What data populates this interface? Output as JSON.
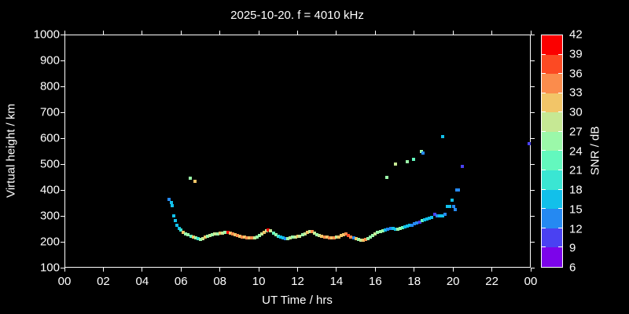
{
  "figure": {
    "background": "#000000",
    "text_color": "#ffffff"
  },
  "chart_data": {
    "type": "scatter",
    "title": "2025-10-20. f = 4010 kHz",
    "xlabel": "UT Time / hrs",
    "ylabel": "Virtual height / km",
    "colorbar_label": "SNR / dB",
    "xlim": [
      0,
      24
    ],
    "ylim": [
      100,
      1000
    ],
    "grid": false,
    "legend": "colorbar-right",
    "x_ticks": [
      0,
      2,
      4,
      6,
      8,
      10,
      12,
      14,
      16,
      18,
      20,
      22,
      24
    ],
    "x_tick_labels": [
      "00",
      "02",
      "04",
      "06",
      "08",
      "10",
      "12",
      "14",
      "16",
      "18",
      "20",
      "22",
      "00"
    ],
    "y_ticks": [
      100,
      200,
      300,
      400,
      500,
      600,
      700,
      800,
      900,
      1000
    ],
    "colorbar": {
      "min": 6,
      "max": 42,
      "step": 3,
      "tick_labels": [
        42,
        39,
        36,
        33,
        30,
        27,
        24,
        21,
        18,
        15,
        12,
        9,
        6
      ],
      "colors_low_to_high": [
        "#7c04ea",
        "#4a41f2",
        "#2589f2",
        "#12c0ea",
        "#3ae6d3",
        "#63f8be",
        "#9bf8a9",
        "#c6e894",
        "#f2c568",
        "#fb8c4c",
        "#fc4a23",
        "#fb0000"
      ]
    },
    "points_hour_km_snr": [
      [
        5.4,
        365,
        13
      ],
      [
        5.5,
        352,
        16
      ],
      [
        5.55,
        340,
        16
      ],
      [
        5.62,
        301,
        16
      ],
      [
        5.7,
        282,
        16
      ],
      [
        5.78,
        263,
        16
      ],
      [
        5.9,
        252,
        16
      ],
      [
        6.0,
        245,
        19
      ],
      [
        6.1,
        237,
        31
      ],
      [
        6.22,
        231,
        25
      ],
      [
        6.35,
        226,
        25
      ],
      [
        6.5,
        222,
        22
      ],
      [
        6.62,
        218,
        31
      ],
      [
        6.75,
        214,
        25
      ],
      [
        6.88,
        211,
        19
      ],
      [
        7.0,
        209,
        25
      ],
      [
        7.12,
        212,
        28
      ],
      [
        7.25,
        217,
        31
      ],
      [
        7.38,
        221,
        25
      ],
      [
        7.5,
        224,
        28
      ],
      [
        7.62,
        227,
        25
      ],
      [
        7.75,
        229,
        28
      ],
      [
        7.88,
        231,
        25
      ],
      [
        8.0,
        232,
        31
      ],
      [
        8.12,
        234,
        28
      ],
      [
        8.25,
        235,
        25
      ],
      [
        8.4,
        236,
        40
      ],
      [
        8.52,
        234,
        31
      ],
      [
        8.65,
        231,
        34
      ],
      [
        8.78,
        228,
        31
      ],
      [
        8.9,
        224,
        34
      ],
      [
        9.02,
        221,
        31
      ],
      [
        9.15,
        219,
        34
      ],
      [
        9.28,
        217,
        31
      ],
      [
        9.4,
        216,
        34
      ],
      [
        9.52,
        215,
        31
      ],
      [
        9.65,
        215,
        34
      ],
      [
        9.78,
        216,
        28
      ],
      [
        9.9,
        218,
        25
      ],
      [
        10.02,
        223,
        25
      ],
      [
        10.15,
        230,
        28
      ],
      [
        10.28,
        237,
        31
      ],
      [
        10.4,
        242,
        28
      ],
      [
        10.5,
        244,
        40
      ],
      [
        10.62,
        241,
        28
      ],
      [
        10.75,
        234,
        22
      ],
      [
        10.88,
        227,
        25
      ],
      [
        11.0,
        221,
        19
      ],
      [
        11.12,
        217,
        16
      ],
      [
        11.25,
        214,
        16
      ],
      [
        11.38,
        212,
        13
      ],
      [
        11.5,
        213,
        25
      ],
      [
        11.62,
        215,
        28
      ],
      [
        11.75,
        217,
        25
      ],
      [
        11.88,
        218,
        28
      ],
      [
        12.0,
        220,
        31
      ],
      [
        12.12,
        222,
        28
      ],
      [
        12.25,
        226,
        25
      ],
      [
        12.38,
        231,
        28
      ],
      [
        12.5,
        237,
        31
      ],
      [
        12.62,
        240,
        28
      ],
      [
        12.75,
        238,
        34
      ],
      [
        12.88,
        233,
        28
      ],
      [
        13.0,
        227,
        25
      ],
      [
        13.12,
        223,
        28
      ],
      [
        13.25,
        220,
        31
      ],
      [
        13.38,
        218,
        34
      ],
      [
        13.5,
        217,
        31
      ],
      [
        13.62,
        216,
        34
      ],
      [
        13.75,
        215,
        31
      ],
      [
        13.88,
        215,
        34
      ],
      [
        14.0,
        217,
        28
      ],
      [
        14.12,
        219,
        31
      ],
      [
        14.25,
        223,
        31
      ],
      [
        14.38,
        228,
        31
      ],
      [
        14.5,
        230,
        34
      ],
      [
        14.62,
        224,
        36
      ],
      [
        14.75,
        218,
        34
      ],
      [
        14.88,
        214,
        13
      ],
      [
        15.0,
        211,
        31
      ],
      [
        15.12,
        208,
        25
      ],
      [
        15.25,
        206,
        28
      ],
      [
        15.38,
        206,
        31
      ],
      [
        15.5,
        208,
        34
      ],
      [
        15.62,
        212,
        25
      ],
      [
        15.75,
        218,
        25
      ],
      [
        15.88,
        225,
        25
      ],
      [
        16.0,
        231,
        28
      ],
      [
        16.12,
        236,
        25
      ],
      [
        16.25,
        239,
        25
      ],
      [
        16.38,
        242,
        25
      ],
      [
        16.52,
        246,
        16
      ],
      [
        16.65,
        249,
        13
      ],
      [
        16.78,
        251,
        13
      ],
      [
        16.9,
        251,
        16
      ],
      [
        17.02,
        250,
        16
      ],
      [
        17.15,
        249,
        25
      ],
      [
        17.28,
        251,
        25
      ],
      [
        17.4,
        254,
        22
      ],
      [
        17.52,
        258,
        16
      ],
      [
        17.65,
        261,
        16
      ],
      [
        17.78,
        263,
        16
      ],
      [
        17.9,
        265,
        13
      ],
      [
        18.02,
        269,
        13
      ],
      [
        18.15,
        274,
        13
      ],
      [
        18.28,
        277,
        10
      ],
      [
        18.4,
        281,
        22
      ],
      [
        18.52,
        285,
        16
      ],
      [
        18.65,
        288,
        16
      ],
      [
        18.78,
        291,
        16
      ],
      [
        18.9,
        294,
        16
      ],
      [
        19.05,
        306,
        10
      ],
      [
        19.18,
        301,
        13
      ],
      [
        19.32,
        300,
        16
      ],
      [
        19.45,
        300,
        16
      ],
      [
        19.58,
        306,
        13
      ],
      [
        19.72,
        336,
        16
      ],
      [
        19.82,
        335,
        16
      ],
      [
        19.95,
        361,
        16
      ],
      [
        20.05,
        336,
        13
      ],
      [
        20.12,
        324,
        13
      ],
      [
        20.18,
        400,
        13
      ],
      [
        20.28,
        401,
        13
      ],
      [
        6.47,
        445,
        25
      ],
      [
        6.72,
        433,
        31
      ],
      [
        16.58,
        448,
        25
      ],
      [
        17.04,
        500,
        28
      ],
      [
        17.65,
        509,
        25
      ],
      [
        17.98,
        518,
        22
      ],
      [
        18.38,
        549,
        25
      ],
      [
        18.46,
        543,
        13
      ],
      [
        19.47,
        606,
        16
      ],
      [
        20.48,
        491,
        10
      ],
      [
        23.92,
        579,
        10
      ]
    ]
  }
}
